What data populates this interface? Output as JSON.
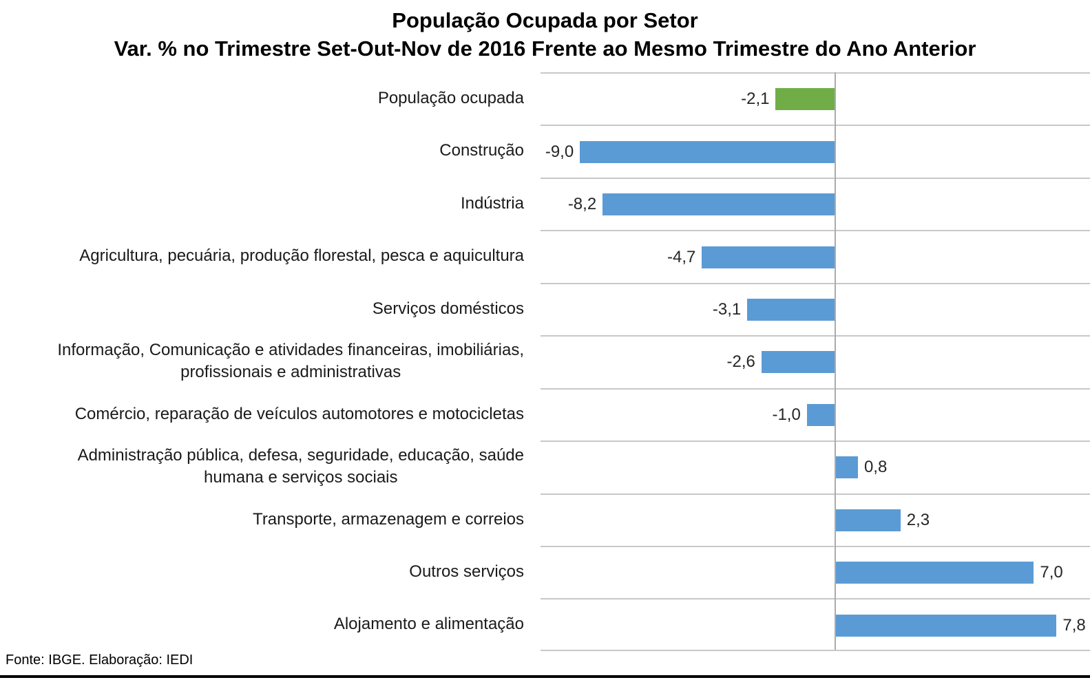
{
  "title": {
    "line1": "População Ocupada por Setor",
    "line2": "Var. % no Trimestre Set-Out-Nov de 2016 Frente ao Mesmo Trimestre do Ano Anterior"
  },
  "footer": {
    "source": "Fonte: IBGE. Elaboração: IEDI"
  },
  "colors": {
    "highlight_bar": "#70AD47",
    "default_bar": "#5B9BD5",
    "gridline": "#C8C8C8",
    "zero_line": "#ABABAB",
    "bottom_rule": "#000000"
  },
  "chart_data": {
    "type": "bar",
    "orientation": "horizontal",
    "title": "População Ocupada por Setor",
    "subtitle": "Var. % no Trimestre Set-Out-Nov de 2016 Frente ao Mesmo Trimestre do Ano Anterior",
    "categories": [
      "População ocupada",
      "Construção",
      "Indústria",
      "Agricultura, pecuária, produção florestal, pesca e aquicultura",
      "Serviços domésticos",
      "Informação, Comunicação e atividades financeiras, imobiliárias,\nprofissionais e administrativas",
      "Comércio, reparação de veículos automotores e motocicletas",
      "Administração pública, defesa, seguridade, educação, saúde\nhumana e serviços sociais",
      "Transporte, armazenagem e correios",
      "Outros serviços",
      "Alojamento e alimentação"
    ],
    "values": [
      -2.1,
      -9.0,
      -8.2,
      -4.7,
      -3.1,
      -2.6,
      -1.0,
      0.8,
      2.3,
      7.0,
      7.8
    ],
    "value_labels": [
      "-2,1",
      "-9,0",
      "-8,2",
      "-4,7",
      "-3,1",
      "-2,6",
      "-1,0",
      "0,8",
      "2,3",
      "7,0",
      "7,8"
    ],
    "bar_colors": [
      "#70AD47",
      "#5B9BD5",
      "#5B9BD5",
      "#5B9BD5",
      "#5B9BD5",
      "#5B9BD5",
      "#5B9BD5",
      "#5B9BD5",
      "#5B9BD5",
      "#5B9BD5",
      "#5B9BD5"
    ],
    "xlim": [
      -10.4,
      9.0
    ],
    "xlabel": "",
    "ylabel": "",
    "grid": "category separator lines",
    "zero_line": true,
    "legend": null,
    "source_note": "Fonte: IBGE. Elaboração: IEDI"
  }
}
